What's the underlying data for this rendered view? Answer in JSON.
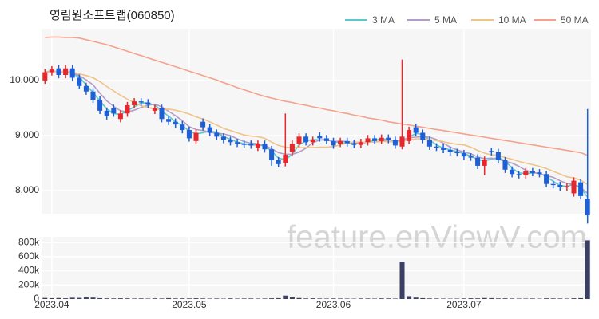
{
  "chart_data": {
    "type": "candlestick",
    "title": "영림원소프트랩(060850)",
    "watermark": "feature.enViewV.com",
    "xlim": [
      -0.5,
      79.5
    ],
    "xticks": [
      {
        "value": 1,
        "label": "2023.04"
      },
      {
        "value": 21,
        "label": "2023.05"
      },
      {
        "value": 42,
        "label": "2023.06"
      },
      {
        "value": 61,
        "label": "2023.07"
      }
    ],
    "ylim": [
      7580,
      10940
    ],
    "yticks": [
      {
        "value": 8000,
        "label": "8,000"
      },
      {
        "value": 9000,
        "label": "9,000"
      },
      {
        "value": 10000,
        "label": "10,000"
      }
    ],
    "grid": true,
    "up_color": "#e8262b",
    "down_color": "#1c5fd6",
    "legend": "top-right",
    "open": [
      10000,
      10150,
      10220,
      10100,
      10220,
      10050,
      9900,
      9800,
      9650,
      9450,
      9500,
      9300,
      9400,
      9550,
      9620,
      9600,
      9450,
      9500,
      9300,
      9250,
      9200,
      9100,
      8900,
      9250,
      9150,
      9050,
      8980,
      8920,
      8880,
      8850,
      8850,
      8780,
      8850,
      8750,
      8550,
      8500,
      8700,
      8850,
      8980,
      8880,
      9000,
      8950,
      8900,
      8850,
      8900,
      8860,
      8830,
      8880,
      8950,
      8900,
      8960,
      8920,
      8800,
      8900,
      9150,
      9050,
      8920,
      8800,
      8780,
      8740,
      8700,
      8680,
      8620,
      8600,
      8450,
      8720,
      8700,
      8550,
      8380,
      8300,
      8280,
      8350,
      8330,
      8300,
      8120,
      8100,
      8060,
      7950,
      8150,
      7850
    ],
    "high": [
      10210,
      10260,
      10280,
      10280,
      10280,
      10110,
      9960,
      9860,
      9710,
      9510,
      9560,
      9460,
      9610,
      9680,
      9680,
      9660,
      9560,
      9560,
      9360,
      9310,
      9260,
      9160,
      9110,
      9310,
      9210,
      9110,
      9040,
      8980,
      8940,
      8910,
      8910,
      8910,
      8910,
      8810,
      8610,
      9400,
      8910,
      9040,
      9040,
      8980,
      9060,
      9010,
      8960,
      8960,
      8960,
      8920,
      8940,
      9010,
      9010,
      9020,
      9020,
      8980,
      10380,
      9160,
      9210,
      9110,
      8980,
      8860,
      8840,
      8800,
      8760,
      8740,
      8680,
      8660,
      8620,
      8780,
      8760,
      8610,
      8440,
      8360,
      8410,
      8410,
      8390,
      8360,
      8180,
      8160,
      8140,
      8240,
      8210,
      9480
    ],
    "low": [
      9940,
      10090,
      10040,
      10040,
      9990,
      9840,
      9740,
      9590,
      9390,
      9290,
      9340,
      9240,
      9340,
      9490,
      9540,
      9500,
      9390,
      9240,
      9190,
      9140,
      9040,
      8890,
      8840,
      9090,
      8990,
      8920,
      8860,
      8820,
      8790,
      8770,
      8760,
      8720,
      8690,
      8450,
      8420,
      8440,
      8640,
      8790,
      8820,
      8820,
      8890,
      8840,
      8760,
      8790,
      8800,
      8770,
      8770,
      8820,
      8840,
      8840,
      8860,
      8760,
      8750,
      8840,
      8990,
      8860,
      8740,
      8720,
      8680,
      8640,
      8620,
      8560,
      8540,
      8390,
      8280,
      8640,
      8490,
      8320,
      8240,
      8220,
      8220,
      8260,
      8240,
      8060,
      8040,
      8000,
      8000,
      7890,
      7840,
      7400
    ],
    "close": [
      10150,
      10200,
      10100,
      10220,
      10050,
      9900,
      9800,
      9650,
      9450,
      9350,
      9400,
      9400,
      9550,
      9620,
      9600,
      9560,
      9500,
      9300,
      9250,
      9200,
      9100,
      8950,
      9050,
      9150,
      9050,
      8980,
      8920,
      8880,
      8850,
      8830,
      8820,
      8850,
      8750,
      8550,
      8480,
      8650,
      8850,
      8980,
      8880,
      8920,
      8950,
      8900,
      8820,
      8900,
      8860,
      8830,
      8880,
      8950,
      8900,
      8960,
      8920,
      8820,
      8980,
      9100,
      9050,
      8920,
      8800,
      8780,
      8740,
      8700,
      8680,
      8620,
      8600,
      8450,
      8560,
      8700,
      8550,
      8380,
      8300,
      8280,
      8350,
      8320,
      8300,
      8120,
      8100,
      8060,
      8080,
      8180,
      7900,
      7550
    ],
    "series": [
      {
        "name": "3 MA",
        "color": "#5ec8c8",
        "values": [
          10150,
          10180,
          10150,
          10170,
          10120,
          10060,
          9920,
          9780,
          9630,
          9480,
          9400,
          9380,
          9450,
          9520,
          9590,
          9590,
          9550,
          9450,
          9350,
          9250,
          9180,
          9080,
          9030,
          9050,
          9080,
          9060,
          8980,
          8930,
          8880,
          8850,
          8830,
          8830,
          8810,
          8720,
          8590,
          8560,
          8660,
          8830,
          8900,
          8930,
          8920,
          8920,
          8890,
          8870,
          8860,
          8860,
          8860,
          8890,
          8910,
          8940,
          8930,
          8900,
          8910,
          8970,
          9040,
          9020,
          8920,
          8830,
          8770,
          8740,
          8710,
          8670,
          8630,
          8560,
          8540,
          8570,
          8600,
          8540,
          8410,
          8320,
          8310,
          8320,
          8320,
          8250,
          8170,
          8090,
          8080,
          8110,
          8050,
          7880
        ]
      },
      {
        "name": "5 MA",
        "color": "#b49cc9",
        "values": [
          10150,
          10170,
          10150,
          10170,
          10140,
          10090,
          10010,
          9920,
          9770,
          9630,
          9530,
          9450,
          9430,
          9460,
          9510,
          9550,
          9570,
          9520,
          9440,
          9360,
          9270,
          9160,
          9110,
          9090,
          9060,
          9040,
          9030,
          9000,
          8940,
          8890,
          8860,
          8850,
          8820,
          8760,
          8690,
          8660,
          8660,
          8700,
          8770,
          8870,
          8920,
          8930,
          8890,
          8900,
          8890,
          8860,
          8860,
          8880,
          8880,
          8900,
          8920,
          8910,
          8920,
          8960,
          8970,
          8980,
          8970,
          8930,
          8860,
          8790,
          8740,
          8700,
          8670,
          8610,
          8580,
          8590,
          8570,
          8530,
          8500,
          8440,
          8370,
          8330,
          8310,
          8270,
          8240,
          8180,
          8130,
          8110,
          8060,
          7950
        ]
      },
      {
        "name": "10 MA",
        "color": "#f0c386",
        "values": [
          10150,
          10160,
          10160,
          10170,
          10150,
          10120,
          10090,
          10050,
          9980,
          9890,
          9810,
          9730,
          9660,
          9600,
          9540,
          9510,
          9480,
          9470,
          9480,
          9460,
          9430,
          9390,
          9340,
          9300,
          9250,
          9190,
          9130,
          9090,
          9050,
          9010,
          8990,
          8980,
          8950,
          8880,
          8820,
          8790,
          8780,
          8780,
          8780,
          8780,
          8790,
          8790,
          8800,
          8830,
          8870,
          8880,
          8880,
          8880,
          8880,
          8890,
          8890,
          8880,
          8900,
          8920,
          8940,
          8940,
          8930,
          8910,
          8890,
          8860,
          8840,
          8830,
          8790,
          8730,
          8680,
          8650,
          8640,
          8600,
          8570,
          8530,
          8500,
          8470,
          8440,
          8400,
          8350,
          8300,
          8250,
          8230,
          8190,
          8110
        ]
      },
      {
        "name": "50 MA",
        "color": "#f5a28c",
        "values": [
          10780,
          10790,
          10790,
          10780,
          10780,
          10770,
          10740,
          10710,
          10680,
          10650,
          10610,
          10570,
          10530,
          10490,
          10450,
          10410,
          10370,
          10330,
          10290,
          10250,
          10210,
          10170,
          10130,
          10090,
          10050,
          10010,
          9960,
          9920,
          9870,
          9830,
          9790,
          9750,
          9710,
          9680,
          9650,
          9620,
          9600,
          9570,
          9550,
          9520,
          9500,
          9470,
          9450,
          9420,
          9400,
          9370,
          9350,
          9320,
          9300,
          9280,
          9250,
          9230,
          9210,
          9190,
          9170,
          9150,
          9130,
          9110,
          9090,
          9070,
          9050,
          9030,
          9010,
          8990,
          8970,
          8950,
          8930,
          8910,
          8890,
          8870,
          8850,
          8830,
          8810,
          8790,
          8770,
          8750,
          8730,
          8710,
          8690,
          8640
        ]
      }
    ],
    "volume": {
      "color": "#3b3f63",
      "ylim": [
        0,
        880000
      ],
      "yticks": [
        0,
        {
          "value": 200000,
          "label": "200k"
        },
        {
          "value": 400000,
          "label": "400k"
        },
        {
          "value": 600000,
          "label": "600k"
        },
        {
          "value": 800000,
          "label": "800k"
        }
      ],
      "values": [
        15000,
        12000,
        14000,
        10000,
        18000,
        16000,
        22000,
        20000,
        12000,
        9000,
        8000,
        10000,
        9000,
        7000,
        8000,
        6000,
        9000,
        7000,
        12000,
        8000,
        9000,
        8000,
        10000,
        8000,
        6000,
        7000,
        5000,
        9000,
        6000,
        7000,
        8000,
        6000,
        7000,
        10000,
        12000,
        48000,
        22000,
        14000,
        8000,
        10000,
        7000,
        6000,
        8000,
        7000,
        6000,
        5000,
        8000,
        7000,
        6000,
        9000,
        8000,
        6000,
        530000,
        40000,
        20000,
        12000,
        8000,
        7000,
        6000,
        5000,
        6000,
        8000,
        10000,
        9000,
        14000,
        12000,
        8000,
        9000,
        7000,
        6000,
        6000,
        7000,
        5000,
        9000,
        8000,
        7000,
        6000,
        10000,
        12000,
        830000
      ]
    }
  }
}
